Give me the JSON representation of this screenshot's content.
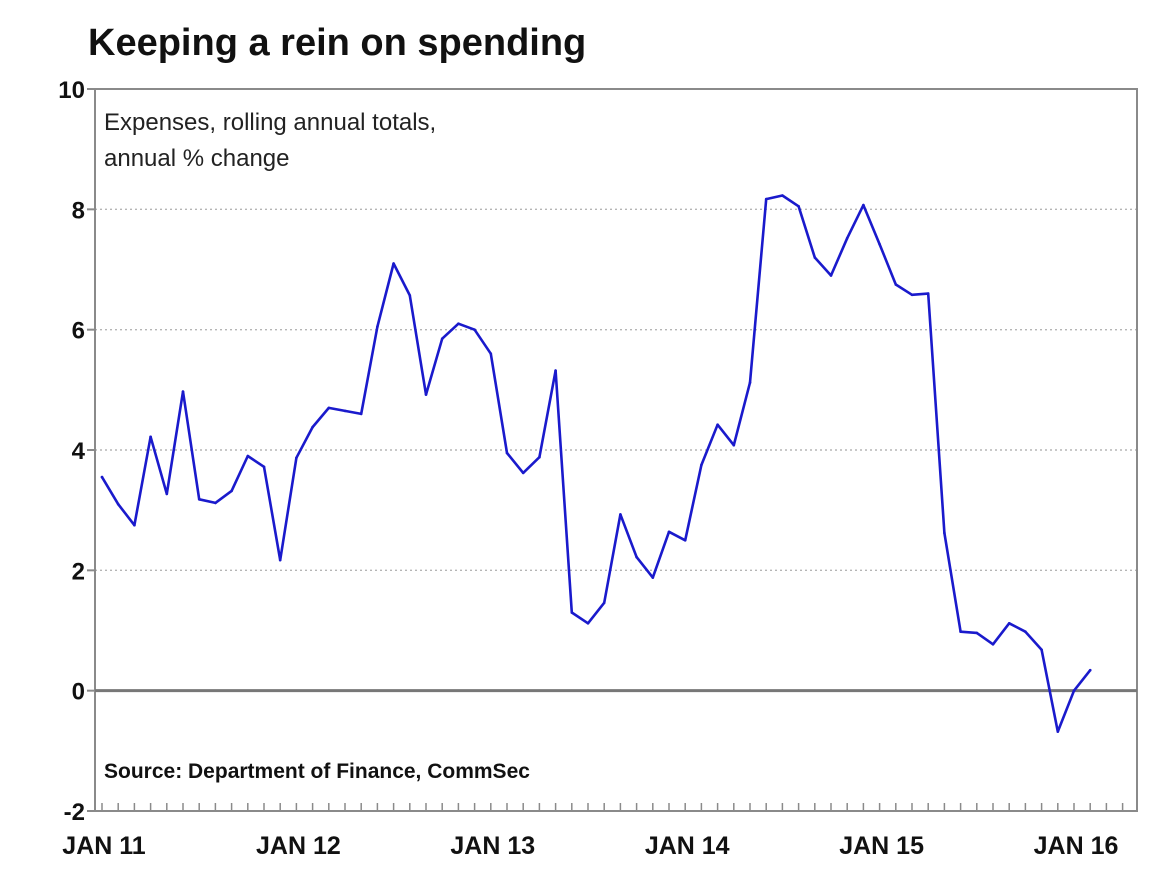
{
  "chart_data": {
    "type": "line",
    "title": "Keeping a rein on spending",
    "subtitle_lines": [
      "Expenses, rolling annual totals,",
      "annual % change"
    ],
    "source": "Source: Department of Finance, CommSec",
    "xlabel": "",
    "ylabel": "",
    "ylim": [
      -2,
      10
    ],
    "yticks": [
      -2,
      0,
      2,
      4,
      6,
      8,
      10
    ],
    "x_tick_labels": [
      "JAN 11",
      "JAN 12",
      "JAN 13",
      "JAN 14",
      "JAN 15",
      "JAN 16"
    ],
    "grid": true,
    "series": [
      {
        "color": "#1a1acc",
        "x": [
          "2011-01",
          "2011-02",
          "2011-03",
          "2011-04",
          "2011-05",
          "2011-06",
          "2011-07",
          "2011-08",
          "2011-09",
          "2011-10",
          "2011-11",
          "2011-12",
          "2012-01",
          "2012-02",
          "2012-03",
          "2012-04",
          "2012-05",
          "2012-06",
          "2012-07",
          "2012-08",
          "2012-09",
          "2012-10",
          "2012-11",
          "2012-12",
          "2013-01",
          "2013-02",
          "2013-03",
          "2013-04",
          "2013-05",
          "2013-06",
          "2013-07",
          "2013-08",
          "2013-09",
          "2013-10",
          "2013-11",
          "2013-12",
          "2014-01",
          "2014-02",
          "2014-03",
          "2014-04",
          "2014-05",
          "2014-06",
          "2014-07",
          "2014-08",
          "2014-09",
          "2014-10",
          "2014-11",
          "2014-12",
          "2015-01",
          "2015-02",
          "2015-03",
          "2015-04",
          "2015-05",
          "2015-06",
          "2015-07",
          "2015-08",
          "2015-09",
          "2015-10",
          "2015-11",
          "2015-12",
          "2016-01",
          "2016-02"
        ],
        "values": [
          3.55,
          3.1,
          2.75,
          4.22,
          3.27,
          4.97,
          3.18,
          3.12,
          3.32,
          3.9,
          3.72,
          2.17,
          3.87,
          4.38,
          4.7,
          4.65,
          4.6,
          6.05,
          7.1,
          6.57,
          4.92,
          5.85,
          6.1,
          6.0,
          5.6,
          3.95,
          3.62,
          3.88,
          5.32,
          1.3,
          1.12,
          1.46,
          2.93,
          2.22,
          1.88,
          2.64,
          2.5,
          3.75,
          4.42,
          4.08,
          5.12,
          8.17,
          8.23,
          8.05,
          7.2,
          6.9,
          7.52,
          8.07,
          7.42,
          6.75,
          6.58,
          6.6,
          2.62,
          0.98,
          0.96,
          0.77,
          1.12,
          0.98,
          0.68,
          -0.68,
          0.0,
          0.34
        ]
      }
    ]
  }
}
